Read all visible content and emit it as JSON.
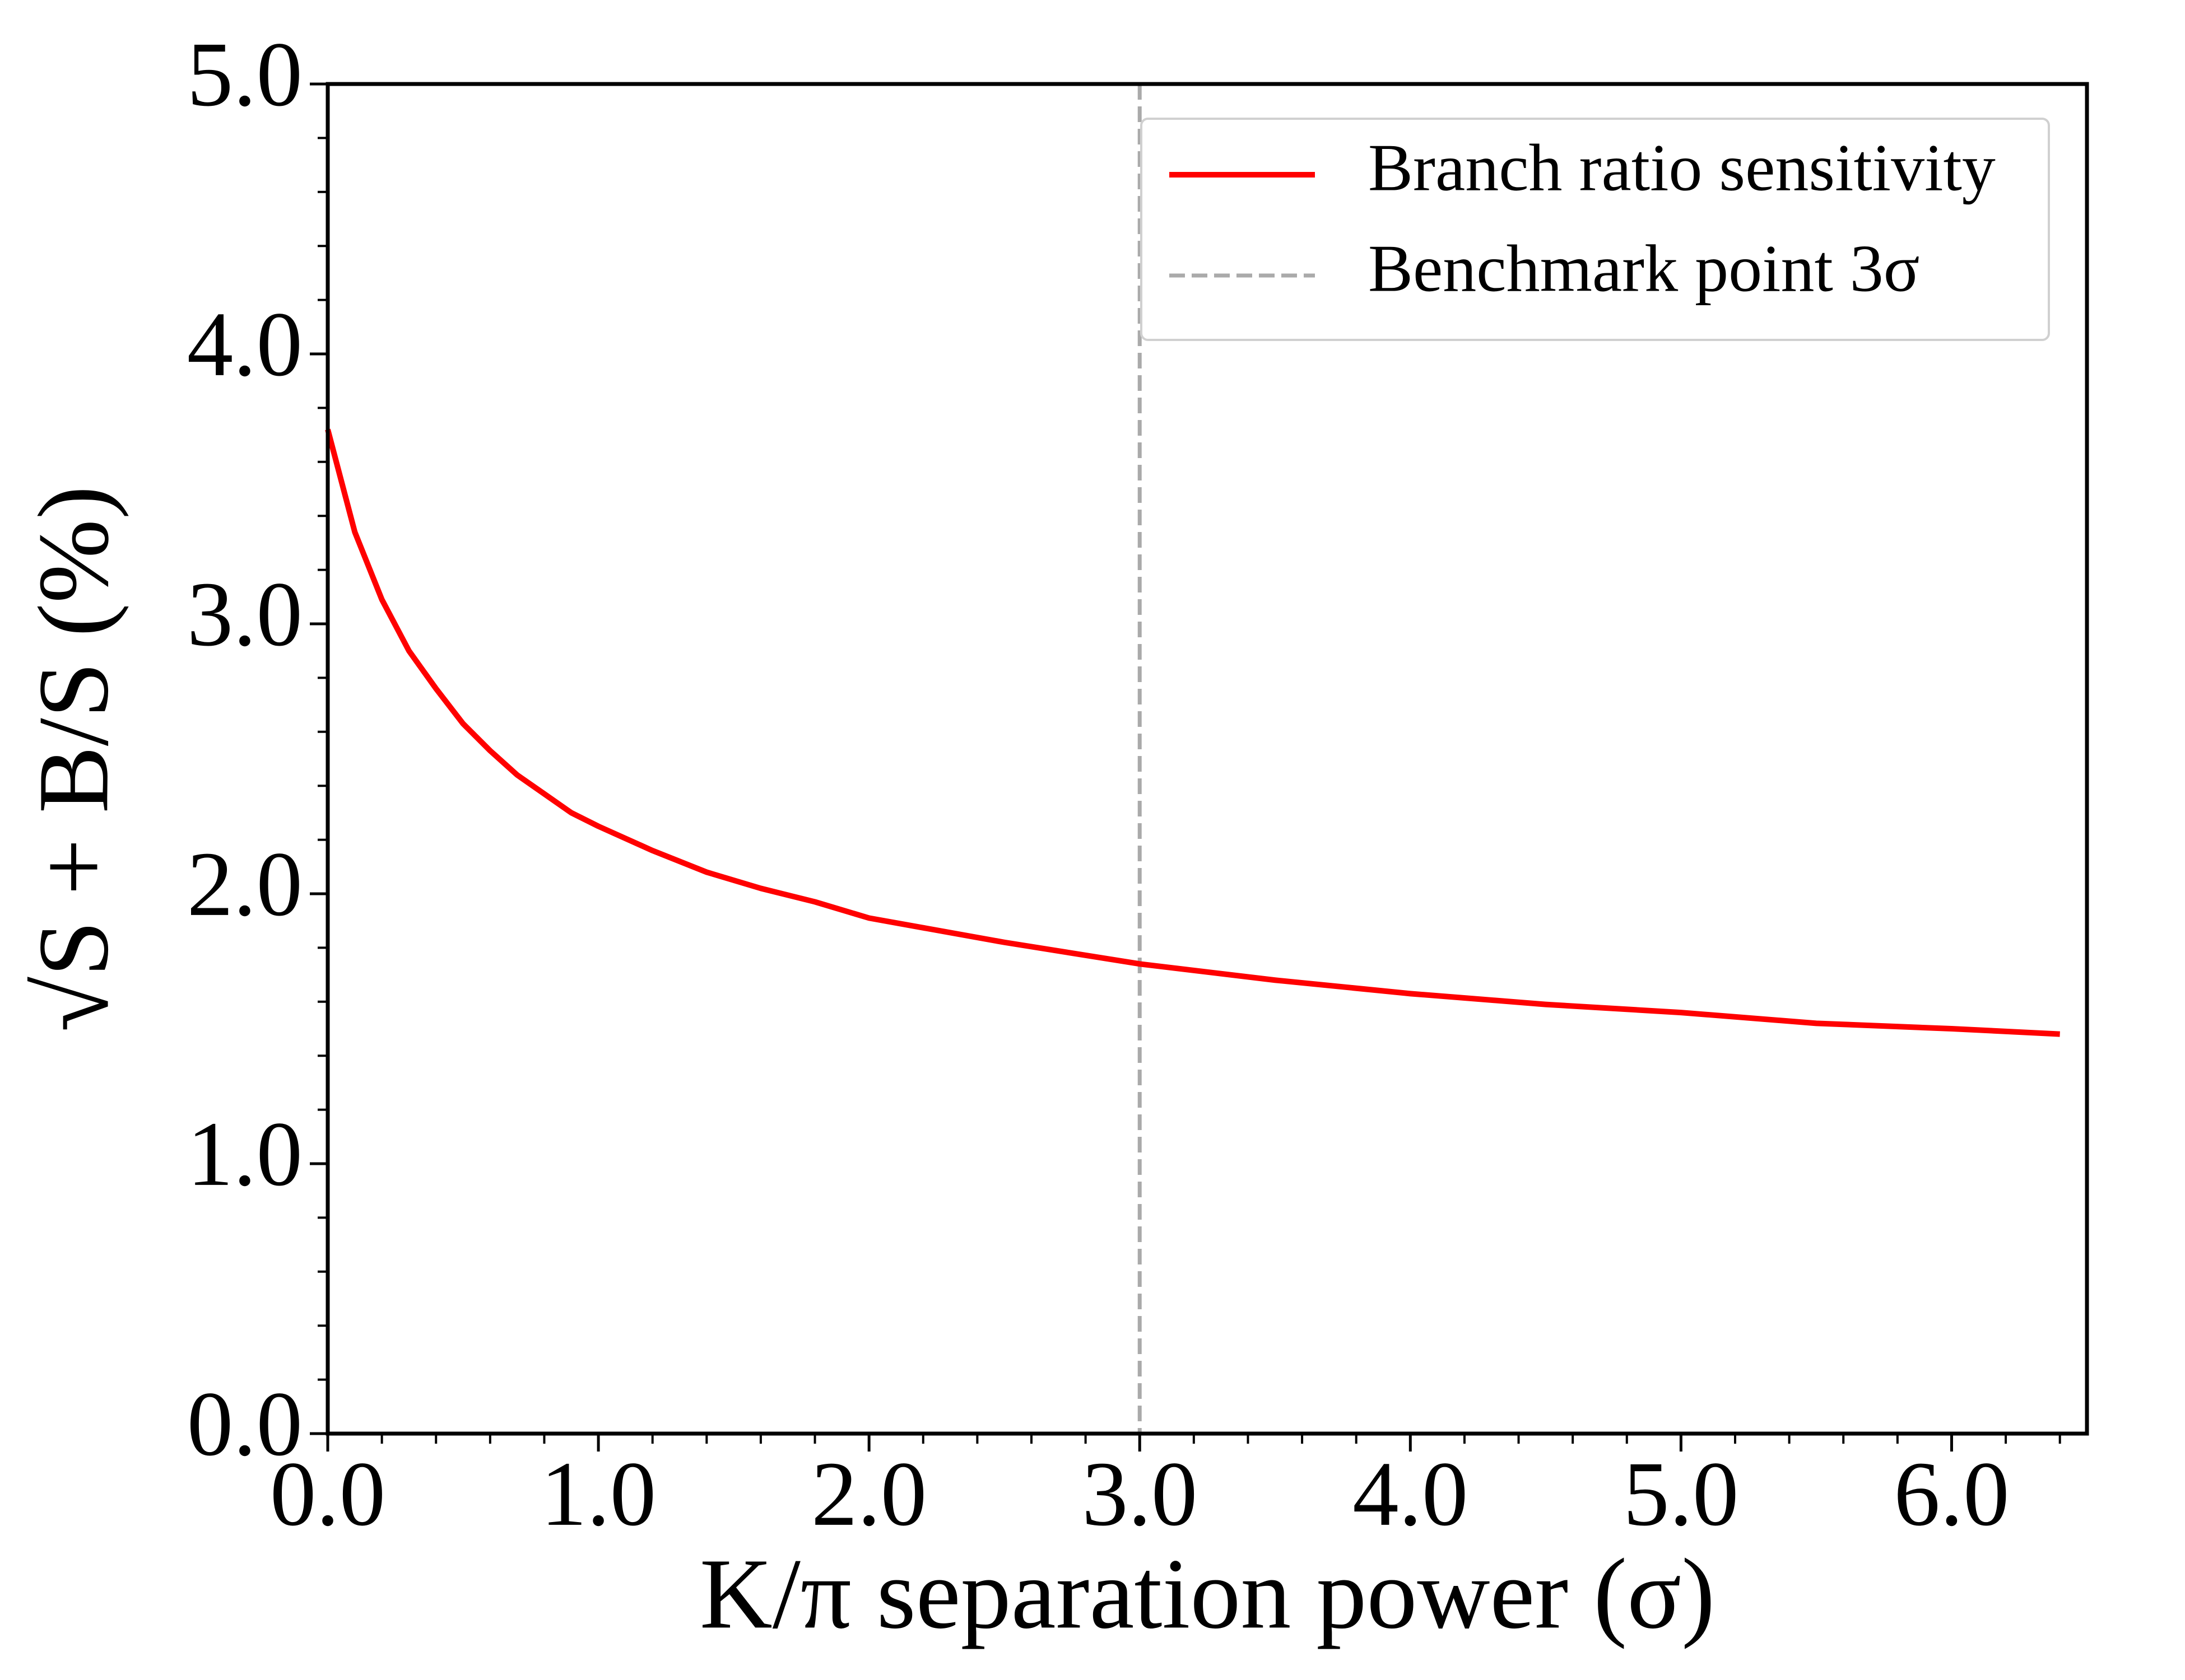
{
  "chart_data": {
    "type": "line",
    "xlabel": "K/π separation power (σ)",
    "ylabel": "√S + B/S (%)",
    "x": [
      0,
      0.1,
      0.2,
      0.3,
      0.4,
      0.5,
      0.6,
      0.7,
      0.8,
      0.9,
      1.0,
      1.2,
      1.4,
      1.6,
      1.8,
      2.0,
      2.5,
      3.0,
      3.5,
      4.0,
      4.5,
      5.0,
      5.5,
      6.0,
      6.4
    ],
    "series": [
      {
        "name": "Branch ratio sensitivity",
        "color": "#ff0000",
        "values": [
          3.72,
          3.34,
          3.09,
          2.9,
          2.76,
          2.63,
          2.53,
          2.44,
          2.37,
          2.3,
          2.25,
          2.16,
          2.08,
          2.02,
          1.97,
          1.91,
          1.82,
          1.74,
          1.68,
          1.63,
          1.59,
          1.56,
          1.52,
          1.5,
          1.48
        ]
      }
    ],
    "vlines": [
      {
        "name": "Benchmark point 3σ",
        "x": 3,
        "color": "#aaaaaa",
        "style": "dashed"
      }
    ],
    "xlim": [
      0,
      6.5
    ],
    "ylim": [
      0,
      5
    ],
    "xticks": [
      {
        "value": 0,
        "label": "0.0"
      },
      {
        "value": 1,
        "label": "1.0"
      },
      {
        "value": 2,
        "label": "2.0"
      },
      {
        "value": 3,
        "label": "3.0"
      },
      {
        "value": 4,
        "label": "4.0"
      },
      {
        "value": 5,
        "label": "5.0"
      },
      {
        "value": 6,
        "label": "6.0"
      }
    ],
    "yticks": [
      {
        "value": 0,
        "label": "0.0"
      },
      {
        "value": 1,
        "label": "1.0"
      },
      {
        "value": 2,
        "label": "2.0"
      },
      {
        "value": 3,
        "label": "3.0"
      },
      {
        "value": 4,
        "label": "4.0"
      },
      {
        "value": 5,
        "label": "5.0"
      }
    ],
    "xminorticks": [
      0.2,
      0.4,
      0.6,
      0.8,
      1.2,
      1.4,
      1.6,
      1.8,
      2.2,
      2.4,
      2.6,
      2.8,
      3.2,
      3.4,
      3.6,
      3.8,
      4.2,
      4.4,
      4.6,
      4.8,
      5.2,
      5.4,
      5.6,
      5.8,
      6.2,
      6.4
    ],
    "yminorticks": [
      0.2,
      0.4,
      0.6,
      0.8,
      1.2,
      1.4,
      1.6,
      1.8,
      2.2,
      2.4,
      2.6,
      2.8,
      3.2,
      3.4,
      3.6,
      3.8,
      4.2,
      4.4,
      4.6,
      4.8
    ],
    "legend": "upper right",
    "grid": false
  }
}
